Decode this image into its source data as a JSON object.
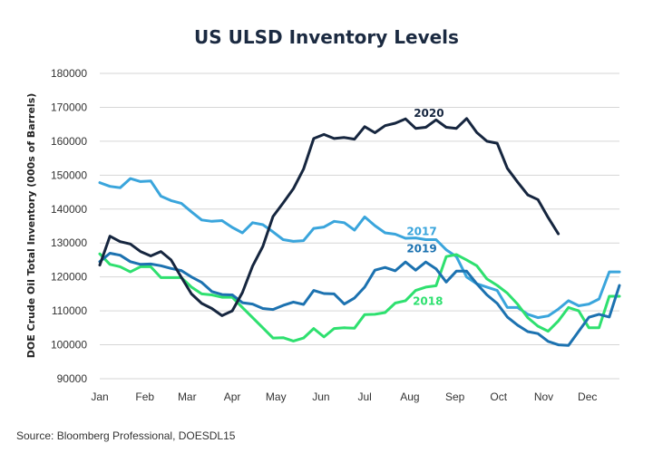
{
  "chart_data": {
    "type": "line",
    "title": "US ULSD Inventory Levels",
    "ylabel": "DOE Crude Oil Total Inventory (000s of Barrels)",
    "xlabel": "",
    "ylim": [
      90000,
      180000
    ],
    "yticks": [
      90000,
      100000,
      110000,
      120000,
      130000,
      140000,
      150000,
      160000,
      170000,
      180000
    ],
    "ytick_labels": [
      "90000",
      "100000",
      "110000",
      "120000",
      "130000",
      "140000",
      "150000",
      "160000",
      "170000",
      "180000"
    ],
    "xlim": [
      1,
      52
    ],
    "xticks": [
      {
        "label": "Jan",
        "week": 1
      },
      {
        "label": "Feb",
        "week": 5.43
      },
      {
        "label": "Mar",
        "week": 9.57
      },
      {
        "label": "Apr",
        "week": 14
      },
      {
        "label": "May",
        "week": 18.29
      },
      {
        "label": "Jun",
        "week": 22.71
      },
      {
        "label": "Jul",
        "week": 27
      },
      {
        "label": "Aug",
        "week": 31.43
      },
      {
        "label": "Sep",
        "week": 35.86
      },
      {
        "label": "Oct",
        "week": 40.14
      },
      {
        "label": "Nov",
        "week": 44.57
      },
      {
        "label": "Dec",
        "week": 48.86
      }
    ],
    "grid": true,
    "series": [
      {
        "name": "2017",
        "color": "#3aa5dc",
        "label_week": 32.6,
        "label_value": 132300,
        "x": [
          1,
          2,
          3,
          4,
          5,
          6,
          7,
          8,
          9,
          10,
          11,
          12,
          13,
          14,
          15,
          16,
          17,
          18,
          19,
          20,
          21,
          22,
          23,
          24,
          25,
          26,
          27,
          28,
          29,
          30,
          31,
          32,
          33,
          34,
          35,
          36,
          37,
          38,
          39,
          40,
          41,
          42,
          43,
          44,
          45,
          46,
          47,
          48,
          49,
          50,
          51,
          52
        ],
        "values": [
          147800,
          146700,
          146300,
          149000,
          148100,
          148300,
          143800,
          142500,
          141700,
          139200,
          136800,
          136400,
          136600,
          134600,
          133000,
          136000,
          135400,
          133300,
          131000,
          130500,
          130700,
          134300,
          134700,
          136400,
          136000,
          133800,
          137700,
          135100,
          133000,
          132600,
          131400,
          131500,
          131000,
          131000,
          128000,
          126000,
          120000,
          118000,
          117000,
          116000,
          111000,
          111000,
          109000,
          108000,
          108500,
          110500,
          113000,
          111500,
          112000,
          113500,
          121500,
          121500
        ]
      },
      {
        "name": "2018",
        "color": "#2ee06f",
        "label_week": 33.2,
        "label_value": 111700,
        "x": [
          1,
          2,
          3,
          4,
          5,
          6,
          7,
          8,
          9,
          10,
          11,
          12,
          13,
          14,
          15,
          16,
          17,
          18,
          19,
          20,
          21,
          22,
          23,
          24,
          25,
          26,
          27,
          28,
          29,
          30,
          31,
          32,
          33,
          34,
          35,
          36,
          37,
          38,
          39,
          40,
          41,
          42,
          43,
          44,
          45,
          46,
          47,
          48,
          49,
          50,
          51,
          52
        ],
        "values": [
          126800,
          123700,
          123000,
          121500,
          123000,
          123000,
          119800,
          119800,
          119800,
          117000,
          115000,
          114700,
          114000,
          114000,
          111000,
          108000,
          105000,
          102000,
          102100,
          101100,
          102000,
          104800,
          102300,
          104800,
          105000,
          104900,
          108900,
          109000,
          109500,
          112300,
          113000,
          116000,
          117000,
          117400,
          126000,
          126600,
          125000,
          123300,
          119400,
          117500,
          115200,
          112000,
          108000,
          105500,
          104000,
          107000,
          111000,
          110000,
          105000,
          105000,
          114300,
          114300
        ]
      },
      {
        "name": "2019",
        "color": "#1c72b0",
        "label_week": 32.6,
        "label_value": 127200,
        "x": [
          1,
          2,
          3,
          4,
          5,
          6,
          7,
          8,
          9,
          10,
          11,
          12,
          13,
          14,
          15,
          16,
          17,
          18,
          19,
          20,
          21,
          22,
          23,
          24,
          25,
          26,
          27,
          28,
          29,
          30,
          31,
          32,
          33,
          34,
          35,
          36,
          37,
          38,
          39,
          40,
          41,
          42,
          43,
          44,
          45,
          46,
          47,
          48,
          49,
          50,
          51,
          52
        ],
        "values": [
          124500,
          127000,
          126400,
          124500,
          123700,
          123800,
          123300,
          122500,
          121900,
          120000,
          118400,
          115700,
          114800,
          114700,
          112400,
          112000,
          110700,
          110400,
          111600,
          112600,
          111900,
          116000,
          115100,
          115000,
          112000,
          113800,
          117000,
          122000,
          122800,
          121800,
          124400,
          122000,
          124400,
          122400,
          118500,
          121700,
          121700,
          118000,
          114700,
          112200,
          108200,
          105800,
          103900,
          103300,
          101000,
          100000,
          99800,
          104000,
          108100,
          109000,
          108200,
          117500
        ]
      },
      {
        "name": "2020",
        "color": "#16263f",
        "label_week": 33.3,
        "label_value": 167200,
        "x": [
          1,
          2,
          3,
          4,
          5,
          6,
          7,
          8,
          9,
          10,
          11,
          12,
          13,
          14,
          15,
          16,
          17,
          18,
          19,
          20,
          21,
          22,
          23,
          24,
          25,
          26,
          27,
          28,
          29,
          30,
          31,
          32,
          33,
          34,
          35,
          36,
          37,
          38,
          39,
          40,
          41,
          42,
          43,
          44,
          45,
          46
        ],
        "values": [
          123500,
          132000,
          130400,
          129700,
          127500,
          126200,
          127500,
          125000,
          119900,
          115000,
          112200,
          110700,
          108600,
          110000,
          115400,
          123200,
          129000,
          137800,
          141800,
          146000,
          151800,
          160800,
          162000,
          160800,
          161100,
          160600,
          164300,
          162500,
          164600,
          165300,
          166600,
          163800,
          164100,
          166300,
          164100,
          163800,
          166700,
          162600,
          160000,
          159400,
          152000,
          148000,
          144200,
          142800,
          137500,
          132700
        ]
      }
    ],
    "source": "Source: Bloomberg Professional, DOESDL15"
  }
}
